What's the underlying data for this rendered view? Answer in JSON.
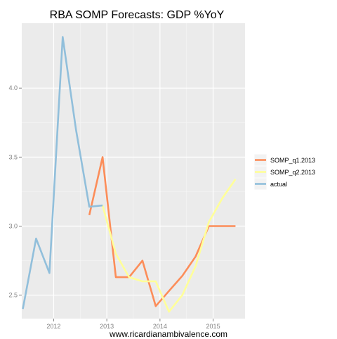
{
  "chart_data": {
    "type": "line",
    "title": "RBA SOMP Forecasts: GDP %YoY",
    "xlabel": "",
    "ylabel": "",
    "caption": "www.ricardianambivalence.com",
    "xlim": [
      2011.4,
      2015.6
    ],
    "ylim": [
      2.33,
      4.47
    ],
    "x_ticks": [
      2012,
      2013,
      2014,
      2015
    ],
    "x_tick_labels": [
      "2012",
      "2013",
      "2014",
      "2015"
    ],
    "y_ticks": [
      2.5,
      3.0,
      3.5,
      4.0
    ],
    "y_tick_labels": [
      "2.5",
      "3.0",
      "3.5",
      "4.0"
    ],
    "grid": true,
    "legend_position": "right",
    "series": [
      {
        "name": "SOMP_q1.2013",
        "color": "#FC8D59",
        "x": [
          2012.67,
          2012.92,
          2013.17,
          2013.42,
          2013.67,
          2013.92,
          2014.17,
          2014.42,
          2014.67,
          2014.92,
          2015.17,
          2015.42
        ],
        "y": [
          3.08,
          3.5,
          2.63,
          2.63,
          2.75,
          2.42,
          2.53,
          2.64,
          2.78,
          3.0,
          3.0,
          3.0
        ]
      },
      {
        "name": "SOMP_q2.2013",
        "color": "#FFFF99",
        "x": [
          2012.92,
          2013.17,
          2013.42,
          2013.67,
          2013.92,
          2014.17,
          2014.42,
          2014.67,
          2014.92,
          2015.17,
          2015.42
        ],
        "y": [
          3.15,
          2.8,
          2.63,
          2.6,
          2.6,
          2.38,
          2.5,
          2.71,
          3.03,
          3.2,
          3.34
        ]
      },
      {
        "name": "actual",
        "color": "#91BFDB",
        "x": [
          2011.42,
          2011.67,
          2011.92,
          2012.17,
          2012.42,
          2012.67,
          2012.92
        ],
        "y": [
          2.4,
          2.91,
          2.66,
          4.37,
          3.7,
          3.14,
          3.15
        ]
      }
    ]
  }
}
